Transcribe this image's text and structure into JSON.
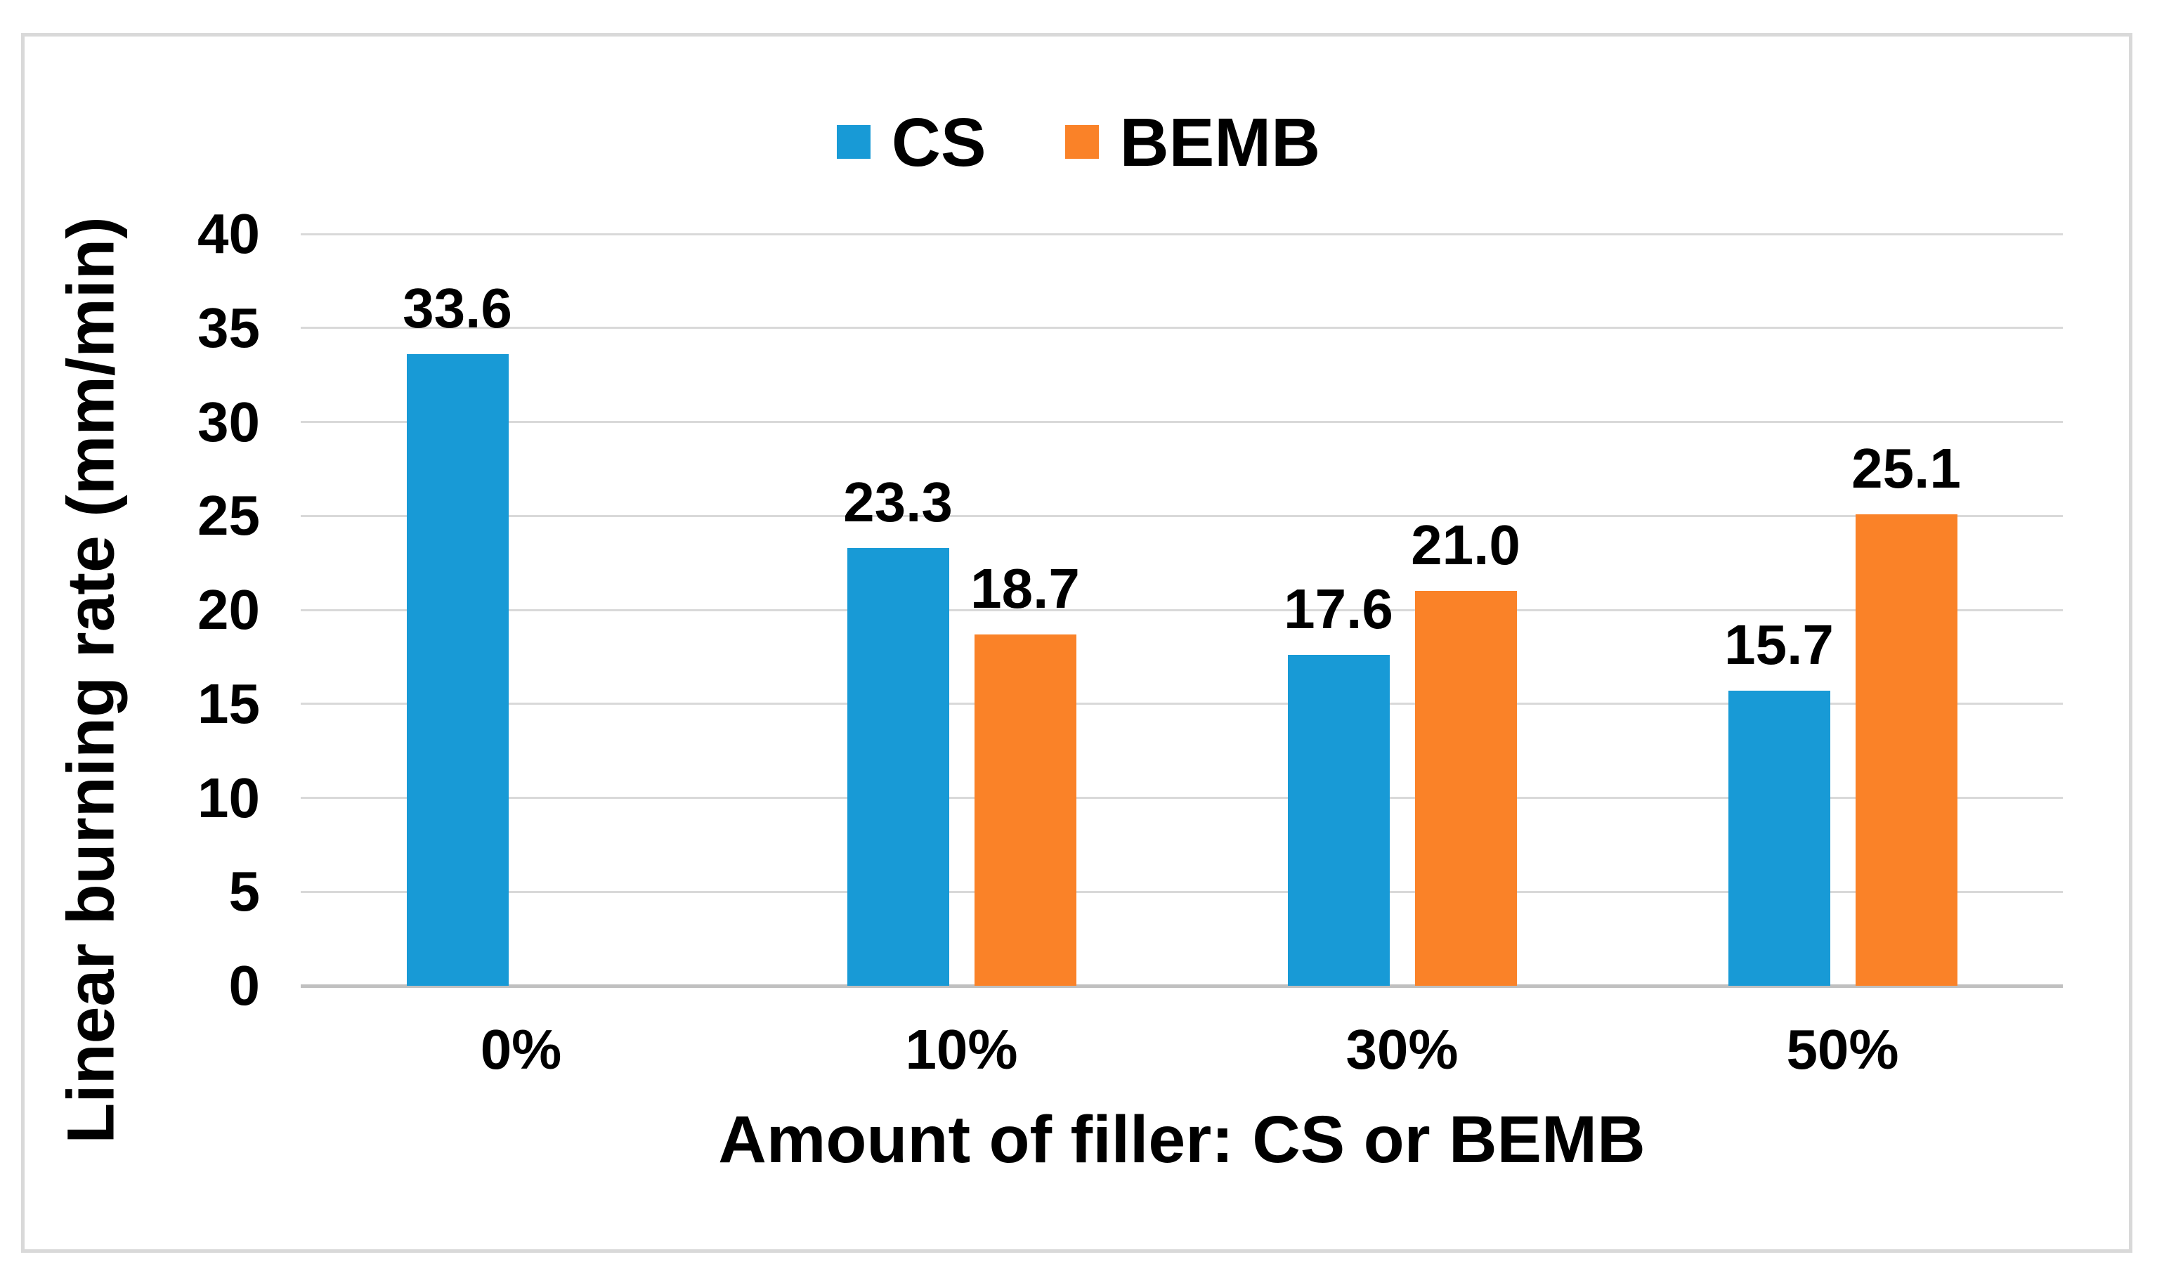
{
  "figure": {
    "background": "#FFFFFF",
    "border_color": "#D9D9D9"
  },
  "legend": {
    "position": "top",
    "items": [
      {
        "label": "CS",
        "color": "#189AD6"
      },
      {
        "label": "BEMB",
        "color": "#FA8228"
      }
    ]
  },
  "chart_data": {
    "type": "bar",
    "title": "",
    "categories": [
      "0%",
      "10%",
      "30%",
      "50%"
    ],
    "series": [
      {
        "name": "CS",
        "color": "#189AD6",
        "values": [
          33.6,
          23.3,
          17.6,
          15.7
        ],
        "data_labels": [
          "33.6",
          "23.3",
          "17.6",
          "15.7"
        ]
      },
      {
        "name": "BEMB",
        "color": "#FA8228",
        "values": [
          null,
          18.7,
          21.0,
          25.1
        ],
        "data_labels": [
          null,
          "18.7",
          "21.0",
          "25.1"
        ]
      }
    ],
    "xlabel": "Amount of filler: CS or BEMB",
    "ylabel": "Linear burning rate (mm/min)",
    "ylim": [
      0,
      40
    ],
    "ytick_step": 5,
    "yticks": [
      "0",
      "5",
      "10",
      "15",
      "20",
      "25",
      "30",
      "35",
      "40"
    ],
    "grid": true,
    "gridline_color": "#D9D9D9",
    "axis_line_color": "#C0C0C0",
    "legend_position": "top"
  }
}
